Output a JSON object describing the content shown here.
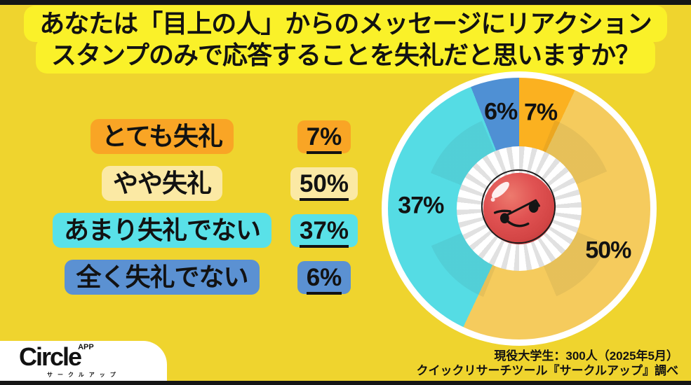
{
  "title": {
    "line1": "あなたは「目上の人」からのメッセージにリアクション",
    "line2": "スタンプのみで応答することを失礼だと思いますか？"
  },
  "legend": {
    "items": [
      {
        "label": "とても失礼",
        "value_text": "7%",
        "label_bg": "#F9A525",
        "value_bg": "#F9A525"
      },
      {
        "label": "やや失礼",
        "value_text": "50%",
        "label_bg": "#FBE9A4",
        "value_bg": "#FBE9A4"
      },
      {
        "label": "あまり失礼でない",
        "value_text": "37%",
        "label_bg": "#59E1E8",
        "value_bg": "#59E1E8"
      },
      {
        "label": "全く失礼でない",
        "value_text": "6%",
        "label_bg": "#5B91D2",
        "value_bg": "#5B91D2"
      }
    ]
  },
  "chart_data": {
    "type": "pie",
    "subtype": "donut",
    "title": "あなたは「目上の人」からのメッセージにリアクションスタンプのみで応答することを失礼だと思いますか？",
    "categories": [
      "とても失礼",
      "やや失礼",
      "あまり失礼でない",
      "全く失礼でない"
    ],
    "values": [
      7,
      50,
      37,
      6
    ],
    "unit": "%",
    "labels": [
      "7%",
      "50%",
      "37%",
      "6%"
    ],
    "colors": [
      "#FBB120",
      "#F5CB5D",
      "#55DCE4",
      "#4F90D4"
    ],
    "start_angle_deg": 0,
    "direction": "clockwise",
    "donut_hole_ratio": 0.47,
    "label_radius_ratio": 0.75,
    "center_icon": "angry-red-face",
    "legend_position": "left"
  },
  "footer": {
    "logo": {
      "brand": "Circle",
      "app": "APP",
      "subtitle": "サークルアップ"
    },
    "source_line1": "現役大学生：300人（2025年5月）",
    "source_line2": "クイックリサーチツール『サークルアップ』調べ"
  },
  "colors": {
    "background": "#EFD42E",
    "title_box": "#FAF129",
    "edge_strip": "#161616",
    "text": "#121212",
    "ring_white": "#FFFFFF",
    "face_red": "#DE5050",
    "ray_gray": "#E1E1E1"
  }
}
